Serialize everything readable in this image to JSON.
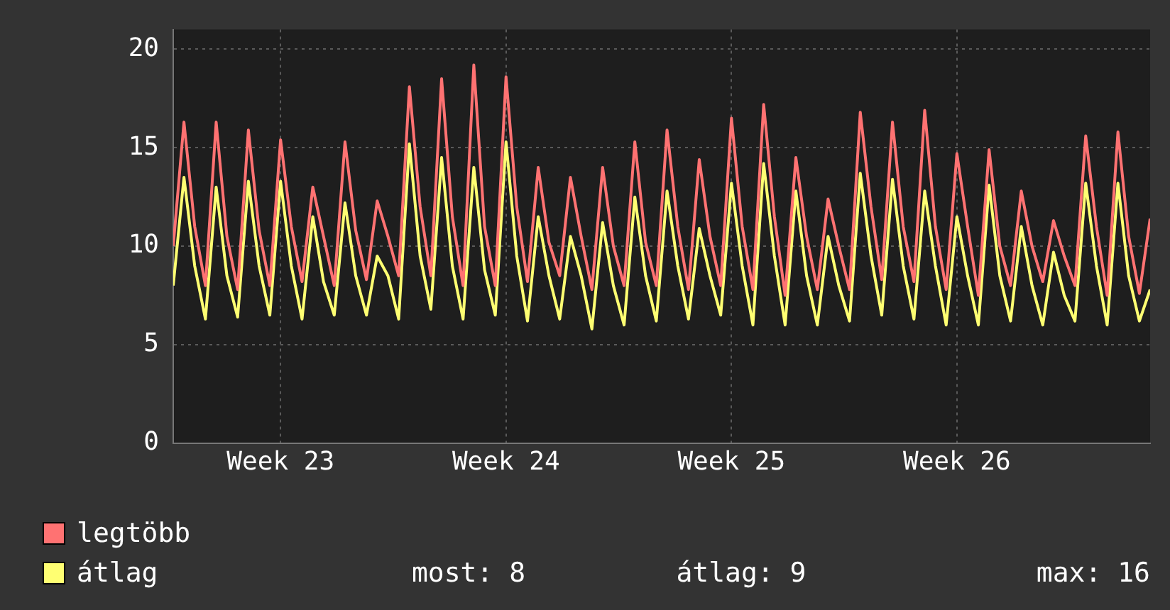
{
  "chart_data": {
    "type": "line",
    "legend": "bottom",
    "grid": true,
    "marker": "none",
    "line_style": "solid",
    "categories": [
      null,
      null,
      null,
      null,
      null,
      null,
      null,
      null,
      null,
      null,
      "Week 23",
      null,
      null,
      null,
      null,
      null,
      null,
      null,
      null,
      null,
      null,
      null,
      null,
      null,
      null,
      null,
      null,
      null,
      null,
      null,
      null,
      "Week 24",
      null,
      null,
      null,
      null,
      null,
      null,
      null,
      null,
      null,
      null,
      null,
      null,
      null,
      null,
      null,
      null,
      null,
      null,
      null,
      null,
      "Week 25",
      null,
      null,
      null,
      null,
      null,
      null,
      null,
      null,
      null,
      null,
      null,
      null,
      null,
      null,
      null,
      null,
      null,
      null,
      null,
      null,
      "Week 26",
      null,
      null,
      null,
      null,
      null,
      null,
      null,
      null,
      null,
      null,
      null,
      null,
      null,
      null,
      null,
      null,
      null,
      null
    ],
    "ylim": [
      0,
      21
    ],
    "yticks": [
      0,
      5,
      10,
      15,
      20
    ],
    "series": [
      {
        "name": "legtöbb",
        "color": "#ff7272",
        "values": [
          10,
          16.3,
          11,
          8,
          16.3,
          10.5,
          7.8,
          15.9,
          10.8,
          8,
          15.4,
          11,
          8.2,
          13,
          10.5,
          8,
          15.3,
          10.8,
          8.3,
          12.3,
          10.5,
          8.5,
          18.1,
          12,
          8.5,
          18.5,
          11.5,
          8,
          19.2,
          11,
          8,
          18.6,
          12,
          8.2,
          14,
          10.2,
          8.5,
          13.5,
          10.5,
          7.8,
          14,
          10,
          8,
          15.3,
          10.2,
          8,
          15.9,
          11,
          7.8,
          14.4,
          10.5,
          8,
          16.5,
          11,
          7.8,
          17.2,
          11.5,
          7.5,
          14.5,
          10.5,
          7.8,
          12.4,
          10,
          7.8,
          16.8,
          12,
          8.3,
          16.3,
          11,
          8.2,
          16.9,
          11,
          7.8,
          14.7,
          11,
          7.5,
          14.9,
          10,
          8,
          12.8,
          10,
          8.2,
          11.3,
          9.5,
          8,
          15.6,
          11,
          7.5,
          15.8,
          10.5,
          7.6,
          11.4
        ]
      },
      {
        "name": "átlag",
        "color": "#ffff72",
        "values": [
          8,
          13.5,
          9,
          6.3,
          13,
          8.5,
          6.4,
          13.3,
          9,
          6.5,
          13.3,
          9,
          6.3,
          11.5,
          8.2,
          6.5,
          12.2,
          8.5,
          6.5,
          9.5,
          8.5,
          6.3,
          15.2,
          9.5,
          6.8,
          14.5,
          9,
          6.3,
          14,
          8.8,
          6.5,
          15.3,
          9.5,
          6.2,
          11.5,
          8.5,
          6.3,
          10.5,
          8.5,
          5.8,
          11.2,
          8,
          6,
          12.5,
          8.5,
          6.2,
          12.8,
          9,
          6.3,
          10.9,
          8.5,
          6.5,
          13.2,
          9,
          6,
          14.2,
          9.5,
          6,
          12.8,
          8.5,
          6,
          10.5,
          8,
          6.2,
          13.7,
          9.5,
          6.5,
          13.4,
          9,
          6.3,
          12.8,
          9,
          6,
          11.5,
          8.5,
          6,
          13.1,
          8.5,
          6.2,
          11,
          8,
          6,
          9.7,
          7.5,
          6.2,
          13.2,
          9,
          6,
          13.2,
          8.5,
          6.2,
          7.8
        ]
      }
    ],
    "annotations": [
      "most: 8",
      "átlag: 9",
      "max: 16"
    ]
  }
}
